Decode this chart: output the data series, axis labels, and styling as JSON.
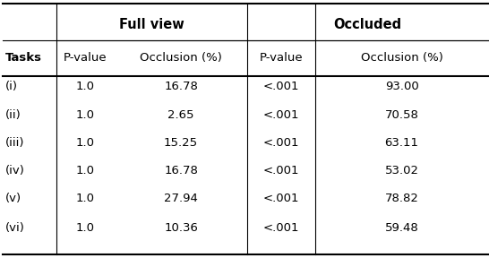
{
  "header_row1_left": "Full view",
  "header_row1_right": "Occluded",
  "col_headers": [
    "Tasks",
    "P-value",
    "Occlusion (%)",
    "P-value",
    "Occlusion (%)"
  ],
  "rows": [
    [
      "(i)",
      "1.0",
      "16.78",
      "<.001",
      "93.00"
    ],
    [
      "(ii)",
      "1.0",
      "2.65",
      "<.001",
      "70.58"
    ],
    [
      "(iii)",
      "1.0",
      "15.25",
      "<.001",
      "63.11"
    ],
    [
      "(iv)",
      "1.0",
      "16.78",
      "<.001",
      "53.02"
    ],
    [
      "(v)",
      "1.0",
      "27.94",
      "<.001",
      "78.82"
    ],
    [
      "(vi)",
      "1.0",
      "10.36",
      "<.001",
      "59.48"
    ]
  ],
  "figsize": [
    5.46,
    2.88
  ],
  "dpi": 100,
  "background_color": "#ffffff",
  "text_color": "#000000",
  "font_size": 9.5,
  "bold_font_size": 10.5
}
